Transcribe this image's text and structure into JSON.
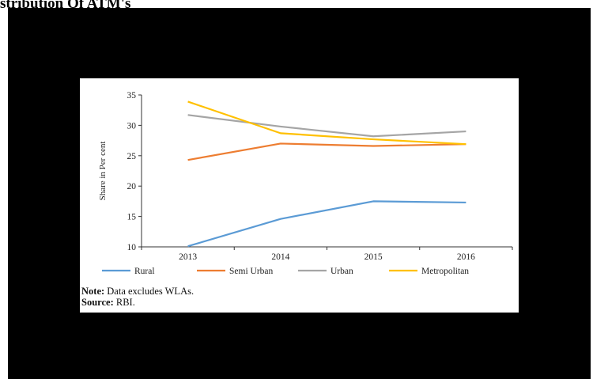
{
  "page": {
    "title": "stribution Of ATM's",
    "note_label": "Note:",
    "note_text": "Data excludes WLAs.",
    "source_label": "Source:",
    "source_text": "RBI."
  },
  "chart_data": {
    "type": "line",
    "title": "",
    "xlabel": "",
    "ylabel": "Share in Per cent",
    "x": [
      "2013",
      "2014",
      "2015",
      "2016"
    ],
    "ylim": [
      10,
      35
    ],
    "yticks": [
      10,
      15,
      20,
      25,
      30,
      35
    ],
    "grid": false,
    "legend_position": "bottom",
    "series": [
      {
        "name": "Rural",
        "color": "#5b9bd5",
        "values": [
          10.1,
          14.6,
          17.5,
          17.3
        ]
      },
      {
        "name": "Semi Urban",
        "color": "#ed7d31",
        "values": [
          24.3,
          27.0,
          26.6,
          26.9
        ]
      },
      {
        "name": "Urban",
        "color": "#a5a5a5",
        "values": [
          31.7,
          29.8,
          28.2,
          29.0
        ]
      },
      {
        "name": "Metropolitan",
        "color": "#ffc000",
        "values": [
          33.9,
          28.7,
          27.7,
          26.9
        ]
      }
    ]
  }
}
